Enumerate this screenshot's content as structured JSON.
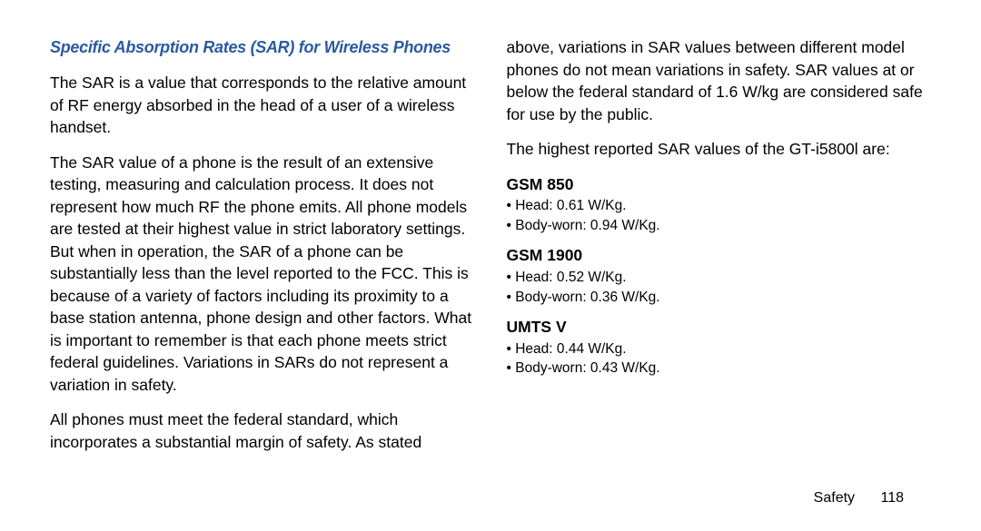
{
  "heading": "Specific Absorption Rates (SAR) for Wireless Phones",
  "left": {
    "p1": "The SAR is a value that corresponds to the relative amount of RF energy absorbed in the head of a user of a wireless handset.",
    "p2": "The SAR value of a phone is the result of an extensive testing, measuring and calculation process. It does not represent how much RF the phone emits. All phone models are tested at their highest value in strict laboratory settings. But when in operation, the SAR of a phone can be substantially less than the level reported to the FCC. This is because of a variety of factors including its proximity to a base station antenna, phone design and other factors. What is important to remember is that each phone meets strict federal guidelines. Variations in SARs do not represent a variation in safety.",
    "p3": "All phones must meet the federal standard, which incorporates a substantial margin of safety. As stated"
  },
  "right": {
    "p1": "above, variations in SAR values between different model phones do not mean variations in safety. SAR values at or below the federal standard of 1.6 W/kg are considered safe for use by the public.",
    "p2": "The highest reported SAR values of the GT-i5800l are:",
    "bands": [
      {
        "name": "GSM 850",
        "head": "Head: 0.61 W/Kg.",
        "body": "Body-worn: 0.94 W/Kg."
      },
      {
        "name": "GSM 1900",
        "head": "Head: 0.52 W/Kg.",
        "body": "Body-worn: 0.36 W/Kg."
      },
      {
        "name": "UMTS V",
        "head": "Head: 0.44 W/Kg.",
        "body": "Body-worn: 0.43 W/Kg."
      }
    ]
  },
  "footer": {
    "section": "Safety",
    "page": "118"
  }
}
